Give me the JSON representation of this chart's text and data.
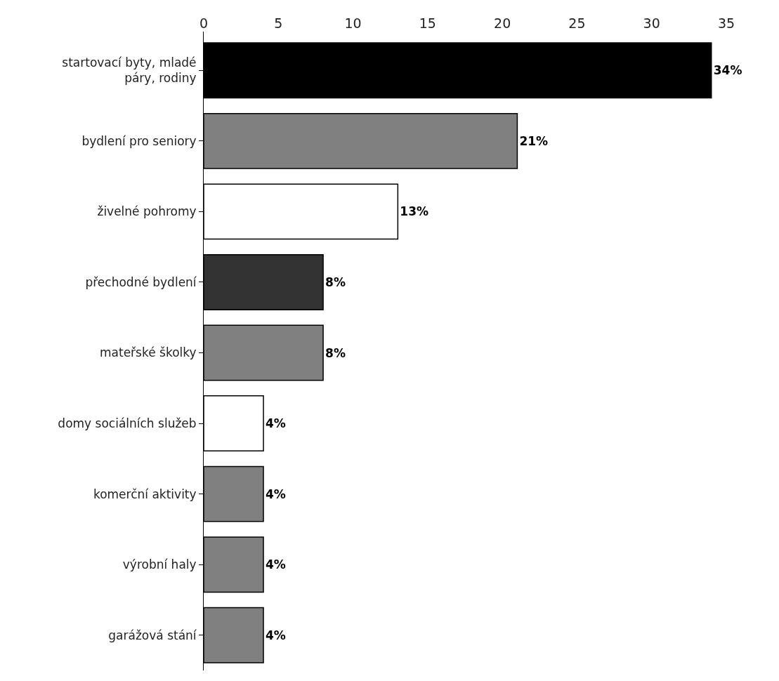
{
  "chart_data": {
    "type": "bar",
    "orientation": "horizontal",
    "categories": [
      "startovací byty, mladé páry, rodiny",
      "bydlení pro seniory",
      "živelné pohromy",
      "přechodné bydlení",
      "mateřské školky",
      "domy sociálních služeb",
      "komerční aktivity",
      "výrobní haly",
      "garážová stání"
    ],
    "values": [
      34,
      21,
      13,
      8,
      8,
      4,
      4,
      4,
      4
    ],
    "colors": [
      "#000000",
      "#808080",
      "#ffffff",
      "#333333",
      "#808080",
      "#ffffff",
      "#808080",
      "#808080",
      "#808080"
    ],
    "value_labels": [
      "34%",
      "21%",
      "13%",
      "8%",
      "8%",
      "4%",
      "4%",
      "4%",
      "4%"
    ],
    "xlim": [
      0,
      35
    ],
    "xticks": [
      0,
      5,
      10,
      15,
      20,
      25,
      30,
      35
    ],
    "grid": false
  }
}
